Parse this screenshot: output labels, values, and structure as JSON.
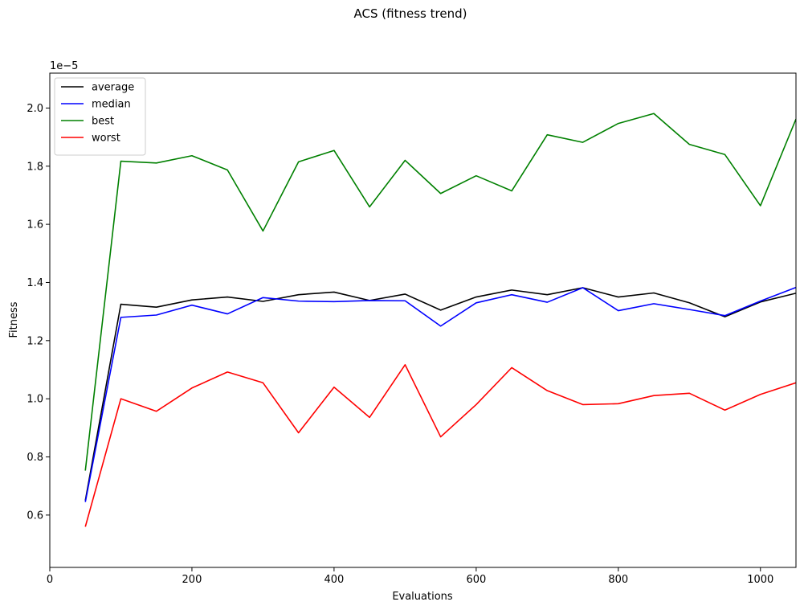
{
  "chart_data": {
    "type": "line",
    "title": "ACS (fitness trend)",
    "xlabel": "Evaluations",
    "ylabel": "Fitness",
    "y_offset_label": "1e−5",
    "y_scale_factor": 1e-05,
    "xlim": [
      0,
      1050
    ],
    "ylim": [
      0.42,
      2.12
    ],
    "xticks": [
      0,
      200,
      400,
      600,
      800,
      1000
    ],
    "xtick_labels": [
      "0",
      "200",
      "400",
      "600",
      "800",
      "1000"
    ],
    "yticks": [
      0.6,
      0.8,
      1.0,
      1.2,
      1.4,
      1.6,
      1.8,
      2.0
    ],
    "ytick_labels": [
      "0.6",
      "0.8",
      "1.0",
      "1.2",
      "1.4",
      "1.6",
      "1.8",
      "2.0"
    ],
    "grid": false,
    "legend_position": "top-left",
    "x": [
      50,
      100,
      150,
      200,
      250,
      300,
      350,
      400,
      450,
      500,
      550,
      600,
      650,
      700,
      750,
      800,
      850,
      900,
      950,
      1000,
      1050
    ],
    "series": [
      {
        "name": "average",
        "color": "#000000",
        "values": [
          0.65,
          1.325,
          1.315,
          1.34,
          1.35,
          1.335,
          1.358,
          1.367,
          1.338,
          1.36,
          1.305,
          1.35,
          1.374,
          1.358,
          1.382,
          1.35,
          1.364,
          1.33,
          1.282,
          1.333,
          1.363
        ]
      },
      {
        "name": "median",
        "color": "#0000ff",
        "values": [
          0.645,
          1.28,
          1.288,
          1.322,
          1.292,
          1.348,
          1.336,
          1.334,
          1.338,
          1.337,
          1.25,
          1.33,
          1.358,
          1.332,
          1.382,
          1.303,
          1.327,
          1.307,
          1.286,
          1.336,
          1.383
        ]
      },
      {
        "name": "best",
        "color": "#008000",
        "values": [
          0.753,
          1.817,
          1.811,
          1.836,
          1.787,
          1.577,
          1.815,
          1.854,
          1.66,
          1.82,
          1.706,
          1.767,
          1.715,
          1.908,
          1.882,
          1.947,
          1.981,
          1.875,
          1.84,
          1.664,
          1.962
        ]
      },
      {
        "name": "worst",
        "color": "#ff0000",
        "values": [
          0.56,
          1.0,
          0.957,
          1.037,
          1.092,
          1.055,
          0.883,
          1.04,
          0.936,
          1.117,
          0.869,
          0.98,
          1.107,
          1.028,
          0.98,
          0.983,
          1.011,
          1.019,
          0.961,
          1.015,
          1.055
        ]
      }
    ]
  }
}
